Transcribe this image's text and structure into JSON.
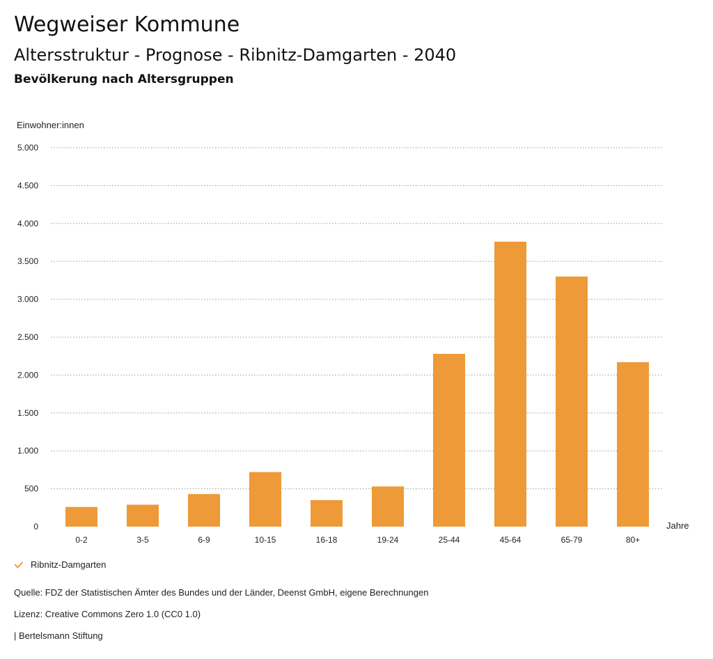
{
  "header": {
    "title": "Wegweiser Kommune",
    "subtitle": "Altersstruktur - Prognose - Ribnitz-Damgarten - 2040",
    "section_title": "Bevölkerung nach Altersgruppen"
  },
  "colors": {
    "bar": "#EE9A38",
    "grid": "#9a9a9a"
  },
  "chart_data": {
    "type": "bar",
    "title": "Bevölkerung nach Altersgruppen",
    "ylabel": "Einwohner:innen",
    "xlabel": "Jahre",
    "ylim": [
      0,
      5000
    ],
    "yticks": [
      0,
      500,
      1000,
      1500,
      2000,
      2500,
      3000,
      3500,
      4000,
      4500,
      5000
    ],
    "ytick_labels": [
      "0",
      "500",
      "1.000",
      "1.500",
      "2.000",
      "2.500",
      "3.000",
      "3.500",
      "4.000",
      "4.500",
      "5.000"
    ],
    "grid": true,
    "legend_position": "bottom-left",
    "categories": [
      "0-2",
      "3-5",
      "6-9",
      "10-15",
      "16-18",
      "19-24",
      "25-44",
      "45-64",
      "65-79",
      "80+"
    ],
    "series": [
      {
        "name": "Ribnitz-Damgarten",
        "values": [
          260,
          290,
          430,
          720,
          350,
          530,
          2280,
          3760,
          3300,
          2170
        ]
      }
    ]
  },
  "legend": {
    "label": "Ribnitz-Damgarten"
  },
  "footer": {
    "source": "Quelle: FDZ der Statistischen Ämter des Bundes und der Länder, Deenst GmbH, eigene Berechnungen",
    "license": "Lizenz: Creative Commons Zero 1.0 (CC0 1.0)",
    "publisher": "| Bertelsmann Stiftung"
  }
}
